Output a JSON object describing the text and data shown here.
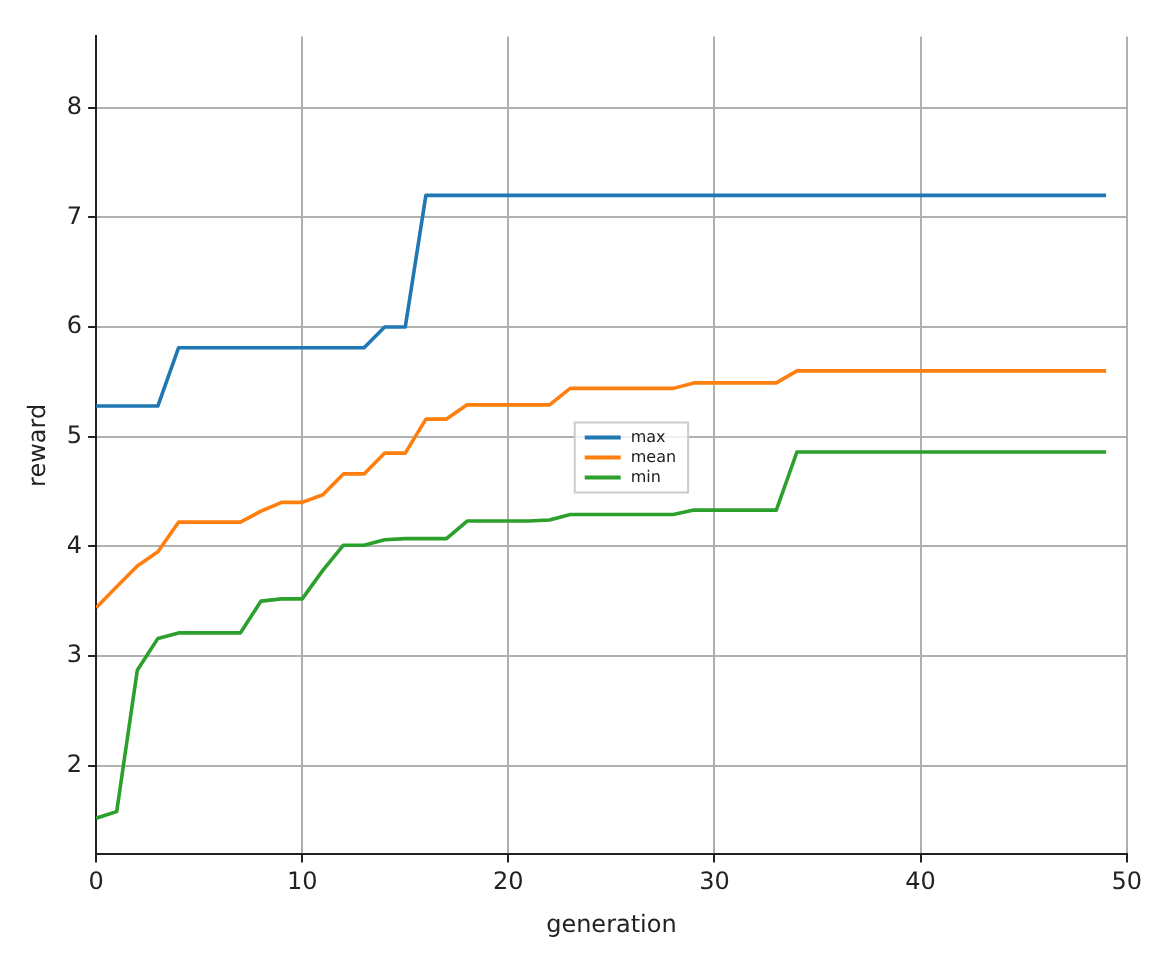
{
  "chart_data": {
    "type": "line",
    "xlabel": "generation",
    "ylabel": "reward",
    "x": [
      0,
      1,
      2,
      3,
      4,
      5,
      6,
      7,
      8,
      9,
      10,
      11,
      12,
      13,
      14,
      15,
      16,
      17,
      18,
      19,
      20,
      21,
      22,
      23,
      24,
      25,
      26,
      27,
      28,
      29,
      30,
      31,
      32,
      33,
      34,
      35,
      36,
      37,
      38,
      39,
      40,
      41,
      42,
      43,
      44,
      45,
      46,
      47,
      48,
      49
    ],
    "series": [
      {
        "name": "max",
        "color": "#1f77b4",
        "values": [
          5.28,
          5.28,
          5.28,
          5.28,
          5.81,
          5.81,
          5.81,
          5.81,
          5.81,
          5.81,
          5.81,
          5.81,
          5.81,
          5.81,
          6.0,
          6.0,
          7.2,
          7.2,
          7.2,
          7.2,
          7.2,
          7.2,
          7.2,
          7.2,
          7.2,
          7.2,
          7.2,
          7.2,
          7.2,
          7.2,
          7.2,
          7.2,
          7.2,
          7.2,
          7.2,
          7.2,
          7.2,
          7.2,
          7.2,
          7.2,
          7.2,
          7.2,
          7.2,
          7.2,
          7.2,
          7.2,
          7.2,
          7.2,
          7.2,
          7.2
        ]
      },
      {
        "name": "mean",
        "color": "#ff7f0e",
        "values": [
          3.44,
          3.63,
          3.82,
          3.95,
          4.22,
          4.22,
          4.22,
          4.22,
          4.32,
          4.4,
          4.4,
          4.47,
          4.66,
          4.66,
          4.85,
          4.85,
          5.16,
          5.16,
          5.29,
          5.29,
          5.29,
          5.29,
          5.29,
          5.44,
          5.44,
          5.44,
          5.44,
          5.44,
          5.44,
          5.49,
          5.49,
          5.49,
          5.49,
          5.49,
          5.6,
          5.6,
          5.6,
          5.6,
          5.6,
          5.6,
          5.6,
          5.6,
          5.6,
          5.6,
          5.6,
          5.6,
          5.6,
          5.6,
          5.6,
          5.6
        ]
      },
      {
        "name": "min",
        "color": "#2ca02c",
        "values": [
          1.52,
          1.58,
          2.87,
          3.16,
          3.21,
          3.21,
          3.21,
          3.21,
          3.5,
          3.52,
          3.52,
          3.78,
          4.01,
          4.01,
          4.06,
          4.07,
          4.07,
          4.07,
          4.23,
          4.23,
          4.23,
          4.23,
          4.24,
          4.29,
          4.29,
          4.29,
          4.29,
          4.29,
          4.29,
          4.33,
          4.33,
          4.33,
          4.33,
          4.33,
          4.86,
          4.86,
          4.86,
          4.86,
          4.86,
          4.86,
          4.86,
          4.86,
          4.86,
          4.86,
          4.86,
          4.86,
          4.86,
          4.86,
          4.86,
          4.86
        ]
      }
    ],
    "xlim": [
      0,
      50
    ],
    "xticks": [
      0,
      10,
      20,
      30,
      40,
      50
    ],
    "ylim": [
      1.19,
      8.65
    ],
    "yticks": [
      2,
      3,
      4,
      5,
      6,
      7,
      8
    ],
    "grid": true,
    "legend": "center",
    "marker": "none",
    "line_style": "solid"
  }
}
